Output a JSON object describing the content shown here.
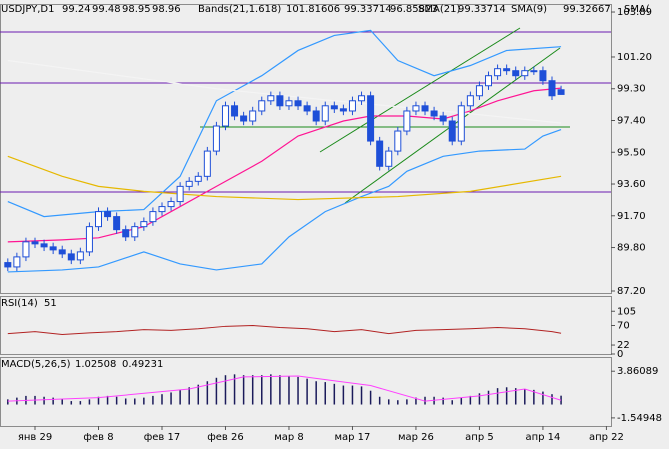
{
  "chart_data": [
    {
      "type": "candlestick",
      "symbol": "USDJPY,D1",
      "categories": [
        null,
        null,
        null,
        "янв 29",
        null,
        null,
        null,
        null,
        null,
        null,
        "фев 8",
        null,
        null,
        null,
        null,
        null,
        null,
        "фев 17",
        null,
        null,
        null,
        null,
        null,
        null,
        "фев 26",
        null,
        null,
        null,
        null,
        null,
        null,
        "мар 8",
        null,
        null,
        null,
        null,
        null,
        null,
        "мар 17",
        null,
        null,
        null,
        null,
        null,
        null,
        "мар 26",
        null,
        null,
        null,
        null,
        null,
        null,
        "апр 5",
        null,
        null,
        null,
        null,
        null,
        null,
        "апр 14",
        null,
        null,
        null,
        null,
        null,
        null,
        "апр 22"
      ],
      "open": [
        88.9,
        88.64,
        89.24,
        90.14,
        90.02,
        89.84,
        89.66,
        89.42,
        89.06,
        89.54,
        91.05,
        91.95,
        91.65,
        90.87,
        90.44,
        91.05,
        91.35,
        91.95,
        92.25,
        92.55,
        93.46,
        93.76,
        94.06,
        95.57,
        97.07,
        98.28,
        97.67,
        97.37,
        97.97,
        98.58,
        98.88,
        98.28,
        98.58,
        98.28,
        97.97,
        97.37,
        98.28,
        98.1,
        97.97,
        98.58,
        98.88,
        96.17,
        94.66,
        95.57,
        96.77,
        97.97,
        98.28,
        97.97,
        97.67,
        97.37,
        96.17,
        98.28,
        98.88,
        99.48,
        100.08,
        100.5,
        100.38,
        100.08,
        100.38,
        100.38,
        99.78,
        99.24,
        null,
        null,
        null,
        null,
        null
      ],
      "high": [
        89.15,
        89.49,
        90.39,
        90.39,
        90.27,
        90.09,
        89.91,
        89.67,
        89.79,
        91.3,
        92.2,
        92.2,
        91.9,
        91.12,
        91.3,
        91.6,
        92.2,
        92.5,
        92.8,
        93.71,
        94.01,
        94.31,
        95.82,
        97.32,
        98.53,
        98.53,
        97.92,
        98.22,
        98.83,
        99.13,
        99.13,
        98.83,
        98.83,
        98.53,
        98.22,
        98.53,
        98.53,
        98.35,
        98.83,
        99.13,
        99.13,
        96.42,
        95.82,
        97.02,
        98.22,
        98.53,
        98.53,
        98.22,
        97.92,
        97.62,
        98.53,
        99.13,
        99.73,
        100.33,
        100.75,
        100.75,
        100.63,
        100.63,
        100.63,
        100.63,
        100.03,
        99.48,
        null,
        null,
        null,
        null,
        null
      ],
      "low": [
        88.39,
        88.39,
        88.99,
        89.77,
        89.59,
        89.41,
        89.17,
        88.81,
        88.81,
        89.29,
        90.8,
        91.4,
        90.62,
        90.19,
        90.19,
        90.8,
        91.1,
        91.7,
        92.0,
        92.3,
        93.21,
        93.51,
        93.81,
        95.32,
        96.82,
        97.42,
        97.12,
        97.12,
        97.72,
        98.33,
        98.03,
        98.03,
        98.03,
        97.72,
        97.12,
        97.12,
        97.85,
        97.72,
        97.72,
        98.33,
        95.92,
        94.41,
        94.41,
        95.32,
        96.52,
        97.72,
        97.72,
        97.42,
        97.12,
        95.92,
        95.92,
        98.03,
        98.63,
        99.23,
        99.83,
        100.13,
        99.83,
        99.83,
        100.13,
        99.53,
        98.63,
        98.95,
        null,
        null,
        null,
        null,
        null
      ],
      "close": [
        88.64,
        89.24,
        90.14,
        90.02,
        89.84,
        89.66,
        89.42,
        89.06,
        89.54,
        91.05,
        91.95,
        91.65,
        90.87,
        90.44,
        91.05,
        91.35,
        91.95,
        92.25,
        92.55,
        93.46,
        93.76,
        94.06,
        95.57,
        97.07,
        98.28,
        97.67,
        97.37,
        97.97,
        98.58,
        98.88,
        98.28,
        98.58,
        98.28,
        97.97,
        97.37,
        98.28,
        98.1,
        97.97,
        98.58,
        98.88,
        96.17,
        94.66,
        95.57,
        96.77,
        97.97,
        98.28,
        97.97,
        97.67,
        97.37,
        96.17,
        98.28,
        98.88,
        99.48,
        100.08,
        100.5,
        100.38,
        100.08,
        100.38,
        100.38,
        99.78,
        98.88,
        98.96,
        null,
        null,
        null,
        null,
        null
      ],
      "up_color": "#ffffff",
      "down_color": "#1e4fd8",
      "wick_color": "#1e4fd8",
      "ylim": [
        87.08,
        104.31
      ],
      "yticks": [
        {
          "value": 87.2,
          "label": "87.20"
        },
        {
          "value": 89.8,
          "label": "89.80"
        },
        {
          "value": 91.7,
          "label": "91.70"
        },
        {
          "value": 93.6,
          "label": "93.60"
        },
        {
          "value": 95.5,
          "label": "95.50"
        },
        {
          "value": 97.4,
          "label": "97.40"
        },
        {
          "value": 99.3,
          "label": "99.30"
        },
        {
          "value": 101.2,
          "label": "101.20"
        },
        103.89
      ],
      "lines": [
        {
          "color": "#3399ff",
          "x": [
            0,
            4,
            10,
            15,
            19,
            23,
            28,
            32,
            36,
            40,
            43,
            47,
            51,
            55,
            61
          ],
          "values": [
            92.55,
            91.65,
            91.95,
            92.07,
            94.06,
            98.58,
            100.08,
            101.59,
            102.49,
            102.79,
            100.99,
            100.08,
            100.69,
            101.59,
            101.81606
          ]
        },
        {
          "color": "#3399ff",
          "x": [
            0,
            6,
            10,
            15,
            19,
            23,
            28,
            31,
            35,
            39,
            42,
            44,
            48,
            52,
            57,
            59,
            61
          ],
          "values": [
            88.34,
            88.46,
            88.64,
            89.54,
            88.82,
            88.46,
            88.82,
            90.44,
            91.95,
            92.85,
            93.46,
            94.36,
            95.26,
            95.57,
            95.69,
            96.47,
            96.85823
          ]
        },
        {
          "color": "#ff1493",
          "x": [
            0,
            6,
            10,
            15,
            19,
            23,
            28,
            32,
            37,
            40,
            44,
            48,
            51,
            54,
            58,
            61
          ],
          "values": [
            90.14,
            90.26,
            90.38,
            91.05,
            92.25,
            93.46,
            94.96,
            96.47,
            97.37,
            97.67,
            97.67,
            97.49,
            97.97,
            98.58,
            99.18,
            99.33714
          ]
        },
        {
          "color": "#f4f4f4",
          "x": [
            0,
            10,
            23,
            36,
            48,
            61
          ],
          "values": [
            100.99,
            100.26,
            99.3,
            98.58,
            97.97,
            97.25
          ]
        },
        {
          "color": "#e6b800",
          "x": [
            0,
            6,
            10,
            15,
            23,
            32,
            43,
            51,
            61
          ],
          "values": [
            95.26,
            94.06,
            93.46,
            93.16,
            92.85,
            92.67,
            92.85,
            93.16,
            94.06
          ]
        }
      ],
      "indicators": [
        {
          "label": "Bands(21,1.618)",
          "color": "#1e90ff"
        },
        {
          "label": "SMA(21)",
          "color": "#ff1493"
        },
        {
          "label": "SMA(9)",
          "color": "#8a2be2",
          "value": 99.32667
        },
        {
          "label": "SMA("
        }
      ]
    },
    {
      "type": "line",
      "title": "RSI(14)",
      "ylim": [
        0,
        140
      ],
      "yticks": [
        105,
        70,
        22,
        0
      ],
      "series": [
        {
          "color": "#b22222",
          "x": [
            0,
            3,
            6,
            9,
            12,
            15,
            18,
            21,
            24,
            27,
            30,
            33,
            36,
            39,
            42,
            45,
            48,
            51,
            54,
            57,
            60,
            61
          ],
          "values": [
            50,
            55,
            48,
            52,
            55,
            60,
            58,
            62,
            68,
            70,
            65,
            62,
            55,
            60,
            50,
            58,
            60,
            62,
            65,
            62,
            55,
            51
          ]
        }
      ]
    },
    {
      "type": "macd",
      "title": "MACD(5,26,5)",
      "ylim": [
        -2.49,
        5.51
      ],
      "yticks": [
        3.86089,
        -1.54948
      ],
      "histogram": {
        "color": "#1a1a5a",
        "values": [
          0.6,
          0.8,
          1.0,
          1.0,
          0.9,
          0.8,
          0.6,
          0.4,
          0.4,
          0.6,
          0.9,
          1.0,
          0.9,
          0.7,
          0.7,
          0.8,
          1.0,
          1.2,
          1.4,
          1.7,
          2.0,
          2.3,
          2.7,
          3.1,
          3.4,
          3.5,
          3.4,
          3.4,
          3.4,
          3.5,
          3.4,
          3.3,
          3.2,
          3.0,
          2.7,
          2.6,
          2.4,
          2.2,
          2.2,
          2.1,
          1.6,
          0.9,
          0.6,
          0.5,
          0.6,
          0.8,
          0.9,
          0.9,
          0.8,
          0.5,
          0.8,
          1.0,
          1.3,
          1.6,
          1.9,
          2.0,
          1.9,
          1.8,
          1.7,
          1.5,
          1.2,
          1.02508
        ]
      },
      "signal": {
        "color": "#ff40ff",
        "x": [
          0,
          10,
          20,
          26,
          32,
          40,
          46,
          52,
          57,
          61
        ],
        "values": [
          0.4,
          0.8,
          1.8,
          3.2,
          3.3,
          2.2,
          0.4,
          1.0,
          1.8,
          0.49231
        ]
      }
    }
  ]
}
